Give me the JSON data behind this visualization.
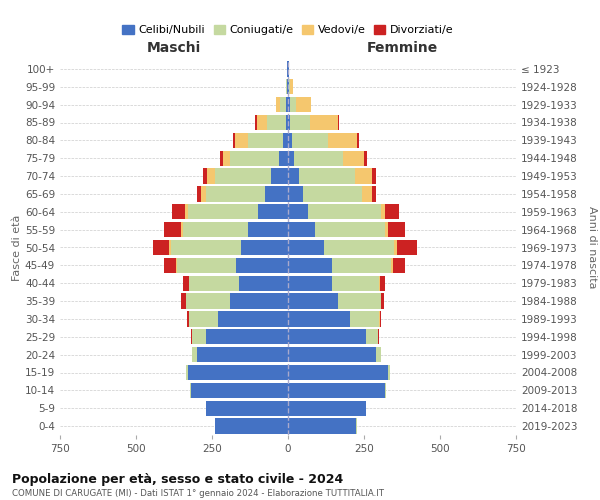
{
  "age_groups": [
    "0-4",
    "5-9",
    "10-14",
    "15-19",
    "20-24",
    "25-29",
    "30-34",
    "35-39",
    "40-44",
    "45-49",
    "50-54",
    "55-59",
    "60-64",
    "65-69",
    "70-74",
    "75-79",
    "80-84",
    "85-89",
    "90-94",
    "95-99",
    "100+"
  ],
  "birth_years": [
    "2019-2023",
    "2014-2018",
    "2009-2013",
    "2004-2008",
    "1999-2003",
    "1994-1998",
    "1989-1993",
    "1984-1988",
    "1979-1983",
    "1974-1978",
    "1969-1973",
    "1964-1968",
    "1959-1963",
    "1954-1958",
    "1949-1953",
    "1944-1948",
    "1939-1943",
    "1934-1938",
    "1929-1933",
    "1924-1928",
    "≤ 1923"
  ],
  "colors": {
    "celibe": "#4472C4",
    "coniugato": "#c5d9a0",
    "vedovo": "#f5c76e",
    "divorziato": "#cc2222"
  },
  "maschi": {
    "celibe": [
      240,
      270,
      320,
      330,
      300,
      270,
      230,
      190,
      160,
      170,
      155,
      130,
      100,
      75,
      55,
      30,
      15,
      8,
      5,
      2,
      2
    ],
    "coniugato": [
      1,
      1,
      2,
      5,
      15,
      45,
      95,
      145,
      165,
      195,
      230,
      215,
      230,
      195,
      185,
      160,
      115,
      60,
      20,
      3,
      1
    ],
    "vedovo": [
      0,
      0,
      0,
      0,
      1,
      1,
      1,
      1,
      2,
      3,
      5,
      8,
      10,
      15,
      25,
      25,
      45,
      35,
      15,
      2,
      0
    ],
    "divorziato": [
      0,
      0,
      0,
      0,
      1,
      2,
      5,
      15,
      20,
      40,
      55,
      55,
      40,
      15,
      15,
      10,
      5,
      5,
      0,
      0,
      0
    ]
  },
  "femmine": {
    "nubile": [
      225,
      255,
      320,
      330,
      290,
      255,
      205,
      165,
      145,
      145,
      120,
      90,
      65,
      50,
      35,
      20,
      12,
      8,
      5,
      3,
      2
    ],
    "coniugata": [
      1,
      1,
      2,
      5,
      15,
      40,
      95,
      140,
      155,
      195,
      230,
      230,
      240,
      195,
      185,
      160,
      120,
      65,
      20,
      5,
      1
    ],
    "vedova": [
      0,
      0,
      0,
      0,
      1,
      1,
      1,
      2,
      3,
      4,
      8,
      10,
      15,
      30,
      55,
      70,
      95,
      90,
      50,
      10,
      1
    ],
    "divorziata": [
      0,
      0,
      0,
      0,
      1,
      2,
      5,
      10,
      15,
      40,
      65,
      55,
      45,
      15,
      15,
      10,
      8,
      5,
      0,
      0,
      0
    ]
  },
  "title": "Popolazione per età, sesso e stato civile - 2024",
  "subtitle": "COMUNE DI CARUGATE (MI) - Dati ISTAT 1° gennaio 2024 - Elaborazione TUTTITALIA.IT",
  "xlabel_left": "Maschi",
  "xlabel_right": "Femmine",
  "ylabel_left": "Fasce di età",
  "ylabel_right": "Anni di nascita",
  "xlim": 750,
  "legend_labels": [
    "Celibi/Nubili",
    "Coniugati/e",
    "Vedovi/e",
    "Divorziati/e"
  ],
  "background_color": "#ffffff",
  "grid_color": "#cccccc"
}
